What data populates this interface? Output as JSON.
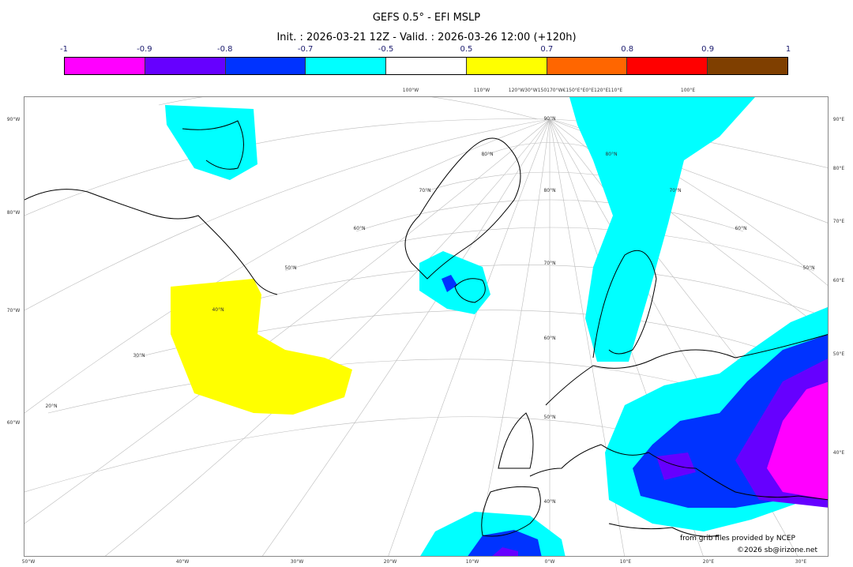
{
  "header": {
    "title": "GEFS 0.5° - EFI MSLP",
    "subtitle": "Init. : 2026-03-21 12Z - Valid. : 2026-03-26 12:00 (+120h)"
  },
  "colorbar": {
    "ticks": [
      "-1",
      "-0.9",
      "-0.8",
      "-0.7",
      "-0.5",
      "0.5",
      "0.7",
      "0.8",
      "0.9",
      "1"
    ],
    "colors": [
      "#ff00ff",
      "#6600ff",
      "#0033ff",
      "#00ffff",
      "#ffffff",
      "#ffff00",
      "#ff6600",
      "#ff0000",
      "#7f3f00"
    ]
  },
  "map": {
    "top_labels": [
      "100°W",
      "110°W",
      "120°W30°W150170°W€150°E°E0°E120°E",
      "110°E",
      "100°E"
    ],
    "bottom_labels": [
      "50°W",
      "40°W",
      "30°W",
      "20°W",
      "10°W",
      "0°W",
      "10°E",
      "20°E",
      "30°E"
    ],
    "left_labels": [
      "90°W",
      "80°W",
      "70°W",
      "60°W"
    ],
    "right_labels": [
      "90°E",
      "80°E",
      "70°E",
      "60°E",
      "50°E",
      "40°E"
    ],
    "lat_labels": [
      "90°N",
      "80°N",
      "80°N",
      "70°N",
      "80°N",
      "70°N",
      "60°N",
      "60°N",
      "70°N",
      "50°N",
      "50°N",
      "40°N",
      "60°N",
      "30°N",
      "20°N",
      "50°N",
      "40°N"
    ]
  },
  "footer": {
    "source": "from grib files provided by NCEP",
    "copyright": "©2026 sb@irizone.net"
  }
}
